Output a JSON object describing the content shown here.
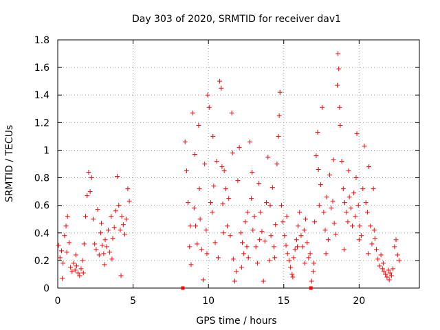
{
  "chart_data": {
    "type": "scatter",
    "title": "Day 303 of 2020, SRMTID for receiver dav1",
    "xlabel": "GPS time / hours",
    "ylabel": "SRMTID / TECUs",
    "xlim": [
      0,
      24
    ],
    "ylim": [
      0,
      1.8
    ],
    "xticks": [
      0,
      5,
      10,
      15,
      20
    ],
    "yticks": [
      0,
      0.2,
      0.4,
      0.6,
      0.8,
      1,
      1.2,
      1.4,
      1.6,
      1.8
    ],
    "xtick_labels": [
      "0",
      "5",
      "10",
      "15",
      "20"
    ],
    "ytick_labels": [
      "0",
      "0.2",
      "0.4",
      "0.6",
      "0.8",
      "1",
      "1.2",
      "1.4",
      "1.6",
      "1.8"
    ],
    "grid": true,
    "marker": "+",
    "color": "#ff0000",
    "series": [
      {
        "name": "SRMTID",
        "points": [
          [
            0.05,
            0.31
          ],
          [
            0.15,
            0.22
          ],
          [
            0.25,
            0.27
          ],
          [
            0.35,
            0.18
          ],
          [
            0.45,
            0.38
          ],
          [
            0.55,
            0.45
          ],
          [
            0.65,
            0.52
          ],
          [
            0.75,
            0.33
          ],
          [
            0.85,
            0.15
          ],
          [
            0.95,
            0.12
          ],
          [
            1.05,
            0.18
          ],
          [
            1.15,
            0.13
          ],
          [
            1.25,
            0.16
          ],
          [
            1.35,
            0.11
          ],
          [
            1.45,
            0.09
          ],
          [
            1.55,
            0.14
          ],
          [
            1.65,
            0.2
          ],
          [
            1.75,
            0.32
          ],
          [
            1.85,
            0.52
          ],
          [
            1.95,
            0.67
          ],
          [
            2.05,
            0.84
          ],
          [
            2.15,
            0.7
          ],
          [
            2.25,
            0.8
          ],
          [
            2.35,
            0.5
          ],
          [
            2.45,
            0.32
          ],
          [
            2.55,
            0.28
          ],
          [
            2.65,
            0.57
          ],
          [
            2.75,
            0.24
          ],
          [
            2.85,
            0.4
          ],
          [
            2.95,
            0.31
          ],
          [
            3.05,
            0.25
          ],
          [
            3.15,
            0.35
          ],
          [
            3.25,
            0.3
          ],
          [
            3.35,
            0.42
          ],
          [
            3.45,
            0.26
          ],
          [
            3.55,
            0.52
          ],
          [
            3.65,
            0.36
          ],
          [
            3.75,
            0.44
          ],
          [
            3.85,
            0.56
          ],
          [
            3.95,
            0.81
          ],
          [
            4.05,
            0.6
          ],
          [
            4.15,
            0.42
          ],
          [
            4.25,
            0.52
          ],
          [
            4.35,
            0.46
          ],
          [
            4.45,
            0.39
          ],
          [
            4.55,
            0.5
          ],
          [
            4.65,
            0.72
          ],
          [
            4.75,
            0.63
          ],
          [
            0.3,
            0.07
          ],
          [
            1.7,
            0.11
          ],
          [
            3.1,
            0.17
          ],
          [
            4.2,
            0.09
          ],
          [
            2.9,
            0.47
          ],
          [
            0.6,
            0.26
          ],
          [
            1.2,
            0.24
          ],
          [
            3.6,
            0.21
          ],
          [
            8.3,
            0.0
          ],
          [
            16.8,
            0.0
          ],
          [
            8.45,
            1.06
          ],
          [
            8.55,
            0.85
          ],
          [
            8.65,
            0.62
          ],
          [
            8.75,
            0.3
          ],
          [
            8.85,
            0.17
          ],
          [
            8.95,
            1.27
          ],
          [
            9.05,
            0.58
          ],
          [
            9.15,
            0.45
          ],
          [
            9.25,
            0.32
          ],
          [
            9.35,
            1.18
          ],
          [
            9.45,
            0.5
          ],
          [
            9.55,
            0.28
          ],
          [
            9.65,
            0.06
          ],
          [
            9.75,
            0.9
          ],
          [
            9.85,
            0.42
          ],
          [
            9.95,
            1.4
          ],
          [
            10.05,
            1.31
          ],
          [
            10.15,
            0.62
          ],
          [
            10.25,
            0.55
          ],
          [
            10.35,
            0.74
          ],
          [
            10.45,
            0.33
          ],
          [
            10.55,
            0.92
          ],
          [
            10.65,
            0.22
          ],
          [
            10.75,
            1.5
          ],
          [
            10.85,
            1.45
          ],
          [
            10.95,
            0.61
          ],
          [
            11.05,
            0.85
          ],
          [
            11.15,
            0.72
          ],
          [
            11.25,
            0.45
          ],
          [
            11.35,
            0.65
          ],
          [
            11.45,
            0.38
          ],
          [
            11.55,
            1.27
          ],
          [
            11.65,
            0.21
          ],
          [
            11.75,
            0.05
          ],
          [
            11.85,
            0.12
          ],
          [
            11.95,
            0.78
          ],
          [
            12.05,
            1.02
          ],
          [
            12.15,
            0.4
          ],
          [
            12.25,
            0.33
          ],
          [
            12.35,
            0.25
          ],
          [
            12.45,
            0.48
          ],
          [
            12.55,
            0.3
          ],
          [
            12.65,
            0.22
          ],
          [
            12.75,
            1.06
          ],
          [
            12.85,
            0.65
          ],
          [
            12.95,
            0.42
          ],
          [
            13.05,
            0.52
          ],
          [
            13.15,
            0.3
          ],
          [
            13.25,
            0.18
          ],
          [
            13.35,
            0.76
          ],
          [
            13.45,
            0.55
          ],
          [
            13.55,
            0.41
          ],
          [
            13.65,
            0.05
          ],
          [
            13.75,
            0.34
          ],
          [
            13.85,
            0.62
          ],
          [
            13.95,
            0.95
          ],
          [
            14.05,
            0.2
          ],
          [
            14.15,
            0.38
          ],
          [
            14.25,
            0.73
          ],
          [
            14.35,
            0.3
          ],
          [
            14.45,
            0.46
          ],
          [
            14.55,
            0.9
          ],
          [
            14.65,
            1.1
          ],
          [
            14.75,
            1.42
          ],
          [
            14.85,
            0.6
          ],
          [
            14.95,
            0.48
          ],
          [
            15.05,
            0.38
          ],
          [
            15.15,
            0.31
          ],
          [
            15.25,
            0.25
          ],
          [
            15.35,
            0.2
          ],
          [
            15.45,
            0.15
          ],
          [
            15.55,
            0.1
          ],
          [
            15.65,
            0.22
          ],
          [
            15.75,
            0.28
          ],
          [
            15.85,
            0.35
          ],
          [
            15.95,
            0.45
          ],
          [
            16.05,
            0.55
          ],
          [
            16.15,
            0.38
          ],
          [
            16.25,
            0.3
          ],
          [
            16.35,
            0.42
          ],
          [
            16.45,
            0.5
          ],
          [
            16.55,
            0.33
          ],
          [
            16.65,
            0.22
          ],
          [
            16.75,
            0.25
          ],
          [
            16.85,
            0.05
          ],
          [
            16.95,
            0.12
          ],
          [
            17.05,
            0.48
          ],
          [
            17.15,
            0.96
          ],
          [
            17.25,
            1.13
          ],
          [
            17.35,
            0.6
          ],
          [
            17.45,
            0.75
          ],
          [
            17.55,
            1.31
          ],
          [
            17.65,
            0.55
          ],
          [
            17.75,
            0.42
          ],
          [
            17.85,
            0.66
          ],
          [
            17.95,
            0.35
          ],
          [
            18.05,
            0.82
          ],
          [
            18.15,
            0.58
          ],
          [
            18.25,
            0.63
          ],
          [
            18.35,
            0.47
          ],
          [
            18.45,
            0.39
          ],
          [
            18.55,
            1.47
          ],
          [
            18.65,
            1.59
          ],
          [
            18.75,
            1.18
          ],
          [
            18.85,
            0.92
          ],
          [
            18.95,
            0.72
          ],
          [
            19.05,
            0.62
          ],
          [
            19.15,
            0.55
          ],
          [
            19.25,
            0.48
          ],
          [
            19.35,
            0.66
          ],
          [
            19.45,
            0.58
          ],
          [
            19.55,
            0.45
          ],
          [
            19.65,
            0.69
          ],
          [
            19.75,
            0.52
          ],
          [
            19.85,
            1.12
          ],
          [
            19.95,
            0.6
          ],
          [
            20.05,
            0.45
          ],
          [
            20.15,
            0.38
          ],
          [
            20.25,
            0.72
          ],
          [
            20.35,
            1.03
          ],
          [
            20.45,
            0.62
          ],
          [
            20.55,
            0.55
          ],
          [
            20.65,
            0.88
          ],
          [
            20.75,
            0.45
          ],
          [
            20.85,
            0.32
          ],
          [
            20.95,
            0.72
          ],
          [
            21.05,
            0.36
          ],
          [
            21.15,
            0.28
          ],
          [
            21.25,
            0.21
          ],
          [
            21.35,
            0.16
          ],
          [
            21.45,
            0.24
          ],
          [
            21.55,
            0.14
          ],
          [
            21.65,
            0.12
          ],
          [
            21.75,
            0.1
          ],
          [
            21.85,
            0.08
          ],
          [
            21.95,
            0.13
          ],
          [
            22.05,
            0.11
          ],
          [
            22.15,
            0.09
          ],
          [
            22.25,
            0.14
          ],
          [
            22.35,
            0.3
          ],
          [
            22.45,
            0.35
          ],
          [
            22.55,
            0.24
          ],
          [
            22.65,
            0.2
          ],
          [
            18.6,
            1.7
          ],
          [
            18.7,
            1.31
          ],
          [
            19.3,
            0.85
          ],
          [
            9.1,
            0.97
          ],
          [
            10.3,
            1.1
          ],
          [
            11.6,
            0.98
          ],
          [
            12.9,
            0.84
          ],
          [
            14.7,
            1.25
          ],
          [
            15.6,
            0.08
          ],
          [
            17.0,
            0.18
          ],
          [
            20.6,
            0.25
          ],
          [
            21.6,
            0.18
          ],
          [
            22.0,
            0.06
          ],
          [
            8.8,
            0.45
          ],
          [
            9.9,
            0.25
          ],
          [
            11.0,
            0.4
          ],
          [
            12.2,
            0.15
          ],
          [
            13.4,
            0.35
          ],
          [
            14.4,
            0.22
          ],
          [
            15.9,
            0.3
          ],
          [
            16.4,
            0.18
          ],
          [
            17.8,
            0.25
          ],
          [
            19.0,
            0.28
          ],
          [
            20.0,
            0.35
          ],
          [
            21.0,
            0.42
          ],
          [
            9.4,
            0.72
          ],
          [
            10.9,
            0.88
          ],
          [
            12.6,
            0.55
          ],
          [
            14.1,
            0.6
          ],
          [
            15.2,
            0.52
          ],
          [
            17.3,
            0.86
          ],
          [
            18.3,
            0.93
          ],
          [
            19.8,
            0.8
          ]
        ]
      }
    ]
  }
}
